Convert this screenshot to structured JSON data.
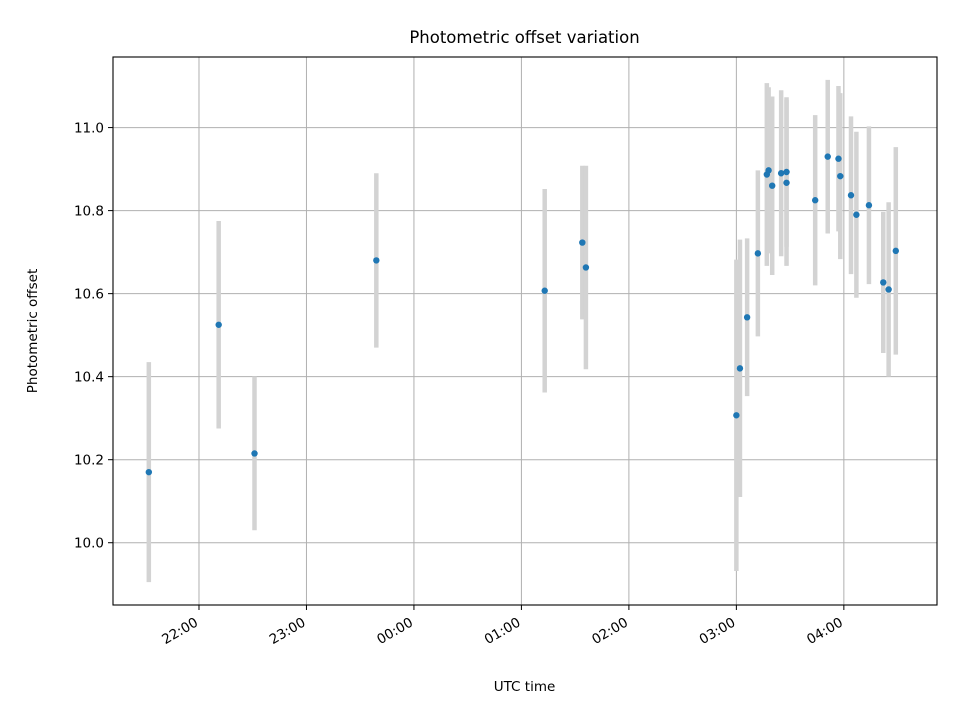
{
  "chart_data": {
    "type": "scatter",
    "title": "Photometric offset variation",
    "xlabel": "UTC time",
    "ylabel": "Photometric offset",
    "x_ticks": [
      "22:00",
      "23:00",
      "00:00",
      "01:00",
      "02:00",
      "03:00",
      "04:00"
    ],
    "y_ticks": [
      "10.0",
      "10.2",
      "10.4",
      "10.6",
      "10.8",
      "11.0"
    ],
    "grid": true,
    "colors": {
      "point": "#1f77b4",
      "errorbar": "#d3d3d3",
      "grid": "#b0b0b0"
    },
    "xlim": [
      "21:12",
      "04:52"
    ],
    "ylim": [
      9.85,
      11.17
    ],
    "series": [
      {
        "points": [
          {
            "x": "21:32",
            "y": 10.17,
            "err": 0.265
          },
          {
            "x": "22:11",
            "y": 10.525,
            "err": 0.25
          },
          {
            "x": "22:31",
            "y": 10.215,
            "err": 0.185
          },
          {
            "x": "23:39",
            "y": 10.68,
            "err": 0.21
          },
          {
            "x": "01:13",
            "y": 10.607,
            "err": 0.245
          },
          {
            "x": "01:34",
            "y": 10.723,
            "err": 0.185
          },
          {
            "x": "01:36",
            "y": 10.663,
            "err": 0.245
          },
          {
            "x": "03:00",
            "y": 10.307,
            "err": 0.375
          },
          {
            "x": "03:02",
            "y": 10.42,
            "err": 0.31
          },
          {
            "x": "03:06",
            "y": 10.543,
            "err": 0.19
          },
          {
            "x": "03:12",
            "y": 10.697,
            "err": 0.2
          },
          {
            "x": "03:17",
            "y": 10.887,
            "err": 0.22
          },
          {
            "x": "03:18",
            "y": 10.897,
            "err": 0.2
          },
          {
            "x": "03:20",
            "y": 10.86,
            "err": 0.215
          },
          {
            "x": "03:25",
            "y": 10.89,
            "err": 0.2
          },
          {
            "x": "03:28",
            "y": 10.893,
            "err": 0.18
          },
          {
            "x": "03:28",
            "y": 10.867,
            "err": 0.2
          },
          {
            "x": "03:44",
            "y": 10.825,
            "err": 0.205
          },
          {
            "x": "03:51",
            "y": 10.93,
            "err": 0.185
          },
          {
            "x": "03:57",
            "y": 10.925,
            "err": 0.175
          },
          {
            "x": "03:58",
            "y": 10.883,
            "err": 0.2
          },
          {
            "x": "04:04",
            "y": 10.837,
            "err": 0.19
          },
          {
            "x": "04:07",
            "y": 10.79,
            "err": 0.2
          },
          {
            "x": "04:14",
            "y": 10.813,
            "err": 0.19
          },
          {
            "x": "04:22",
            "y": 10.627,
            "err": 0.17
          },
          {
            "x": "04:25",
            "y": 10.61,
            "err": 0.21
          },
          {
            "x": "04:29",
            "y": 10.703,
            "err": 0.25
          }
        ]
      }
    ]
  }
}
